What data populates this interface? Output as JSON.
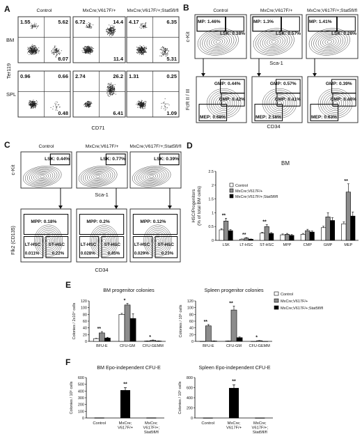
{
  "panel_letters": [
    "A",
    "B",
    "C",
    "D",
    "E",
    "F"
  ],
  "genotypes": [
    "Control",
    "MxCre;V617F/+",
    "MxCre;V617F/+;Stat5fl/fl"
  ],
  "panelA": {
    "row_labels": [
      "BM",
      "SPL"
    ],
    "y_axis": "Ter119",
    "x_axis": "CD71",
    "quadrants": [
      [
        [
          "1.55",
          "5.62",
          "8.07"
        ],
        [
          "6.72",
          "14.4",
          "11.4"
        ],
        [
          "4.17",
          "6.35",
          "5.31"
        ]
      ],
      [
        [
          "0.96",
          "0.66",
          "0.48"
        ],
        [
          "2.74",
          "26.2",
          "6.41"
        ],
        [
          "1.31",
          "0.25",
          "1.09"
        ]
      ]
    ]
  },
  "panelB": {
    "top_y_axis": "c-Kit",
    "top_x_axis": "Sca-1",
    "bottom_y_axis": "FcR II / III",
    "bottom_x_axis": "CD34",
    "mp_labels": [
      "MP: 1.46%",
      "MP: 1.3%",
      "MP: 1.41%"
    ],
    "lsk_labels": [
      "LSK: 0.38%",
      "LSK: 0.57%",
      "LSK: 0.26%"
    ],
    "gmp_labels": [
      "GMP: 0.44%",
      "GMP: 0.57%",
      "GMP: 0.39%"
    ],
    "cmp_labels": [
      "CMP: 0.42%",
      "CMP: 0.41%",
      "CMP: 0.46%"
    ],
    "mep_labels": [
      "MEP: 0.68%",
      "MEP: 2.16%",
      "MEP: 0.63%"
    ]
  },
  "panelC": {
    "top_y_axis": "c-Kit",
    "top_x_axis": "Sca-1",
    "bottom_y_axis": "Flk2 (CD135)",
    "bottom_x_axis": "CD34",
    "lsk_labels": [
      "LSK: 0.44%",
      "LSK: 0.77%",
      "LSK: 0.39%"
    ],
    "mpp_labels": [
      "MPP: 0.18%",
      "MPP: 0.2%",
      "MPP: 0.12%"
    ],
    "lthsc_label": "LT-HSC",
    "lthsc_values": [
      "0.011%",
      "0.028%",
      "0.029%"
    ],
    "sthsc_label": "ST-HSC",
    "sthsc_values": [
      "0.22%",
      "0.45%",
      "0.23%"
    ]
  },
  "legend_labels": [
    "Control",
    "MxCre;V617F/+",
    "MxCre;V617F/+;Stat5fl/fl"
  ],
  "colors": {
    "control": "#ffffff",
    "v617f": "#8c8c8c",
    "stat5": "#000000"
  },
  "chart_data": [
    {
      "id": "D",
      "type": "bar",
      "title": "BM",
      "ylabel": "HSC/Progenitors\n(% of total BM cells)",
      "categories": [
        "LSK",
        "LT-HSC",
        "ST-HSC",
        "MPP",
        "CMP",
        "GMP",
        "MEP"
      ],
      "ylim": [
        0,
        2.5
      ],
      "yticks": [
        0,
        0.5,
        1,
        1.5,
        2,
        2.5
      ],
      "series": [
        {
          "name": "Control",
          "values": [
            0.38,
            0.04,
            0.26,
            0.2,
            0.22,
            0.46,
            0.6
          ],
          "errors": [
            0.04,
            0.01,
            0.03,
            0.03,
            0.03,
            0.05,
            0.07
          ]
        },
        {
          "name": "MxCre;V617F/+",
          "values": [
            0.7,
            0.08,
            0.5,
            0.22,
            0.35,
            0.85,
            1.75
          ],
          "errors": [
            0.1,
            0.02,
            0.07,
            0.03,
            0.05,
            0.15,
            0.3
          ]
        },
        {
          "name": "MxCre;V617F/+;Stat5fl/fl",
          "values": [
            0.35,
            0.04,
            0.25,
            0.18,
            0.3,
            0.72,
            0.88
          ],
          "errors": [
            0.04,
            0.01,
            0.03,
            0.03,
            0.04,
            0.1,
            0.15
          ]
        }
      ],
      "stars": [
        "**",
        "**",
        "**",
        "",
        "",
        "",
        "**"
      ]
    },
    {
      "id": "E1",
      "type": "bar",
      "title": "BM progenitor colonies",
      "ylabel": "Colonies / 2x10⁴ cells",
      "categories": [
        "BFU-E",
        "CFU-GM",
        "CFU-GEMM"
      ],
      "ylim": [
        0,
        120
      ],
      "yticks": [
        0,
        20,
        40,
        60,
        80,
        100,
        120
      ],
      "series": [
        {
          "name": "Control",
          "values": [
            8,
            80,
            1
          ],
          "errors": [
            1,
            3,
            0.3
          ]
        },
        {
          "name": "MxCre;V617F/+",
          "values": [
            25,
            108,
            3
          ],
          "errors": [
            4,
            5,
            1
          ]
        },
        {
          "name": "MxCre;V617F/+;Stat5fl/fl",
          "values": [
            10,
            68,
            1
          ],
          "errors": [
            2,
            14,
            0.5
          ]
        }
      ],
      "stars": [
        "**",
        "*",
        "*"
      ]
    },
    {
      "id": "E2",
      "type": "bar",
      "title": "Spleen progenitor colonies",
      "ylabel": "Colonies / 10⁵ cells",
      "categories": [
        "BFU-E",
        "CFU-GM",
        "CFU-GEMM"
      ],
      "ylim": [
        0,
        120
      ],
      "yticks": [
        0,
        20,
        40,
        60,
        80,
        100,
        120
      ],
      "series": [
        {
          "name": "Control",
          "values": [
            0,
            1,
            0
          ],
          "errors": [
            0,
            0.3,
            0
          ]
        },
        {
          "name": "MxCre;V617F/+",
          "values": [
            46,
            93,
            2
          ],
          "errors": [
            4,
            12,
            0.6
          ]
        },
        {
          "name": "MxCre;V617F/+;Stat5fl/fl",
          "values": [
            1,
            11,
            0
          ],
          "errors": [
            0.5,
            2,
            0
          ]
        }
      ],
      "stars": [
        "**",
        "**",
        "*"
      ]
    },
    {
      "id": "F1",
      "type": "bar",
      "title": "BM Epo-independent CFU-E",
      "ylabel": "Colonies / 10⁵ cells",
      "categories": [
        "Control",
        "MxCre;\nV617F/+",
        "MxCre;\nV617F/+;\nStat5fl/fl"
      ],
      "ylim": [
        0,
        600
      ],
      "yticks": [
        0,
        100,
        200,
        300,
        400,
        500,
        600
      ],
      "values": [
        3,
        410,
        3
      ],
      "errors": [
        0,
        40,
        0
      ],
      "stars": [
        "",
        "**",
        ""
      ]
    },
    {
      "id": "F2",
      "type": "bar",
      "title": "Spleen Epo-independent CFU-E",
      "ylabel": "Colonies / 10⁵ cells",
      "categories": [
        "Control",
        "MxCre;\nV617F/+",
        "MxCre;\nV617F/+;\nStat5fl/fl"
      ],
      "ylim": [
        0,
        800
      ],
      "yticks": [
        0,
        200,
        400,
        600,
        800
      ],
      "values": [
        3,
        590,
        3
      ],
      "errors": [
        0,
        65,
        0
      ],
      "stars": [
        "",
        "**",
        ""
      ]
    }
  ]
}
